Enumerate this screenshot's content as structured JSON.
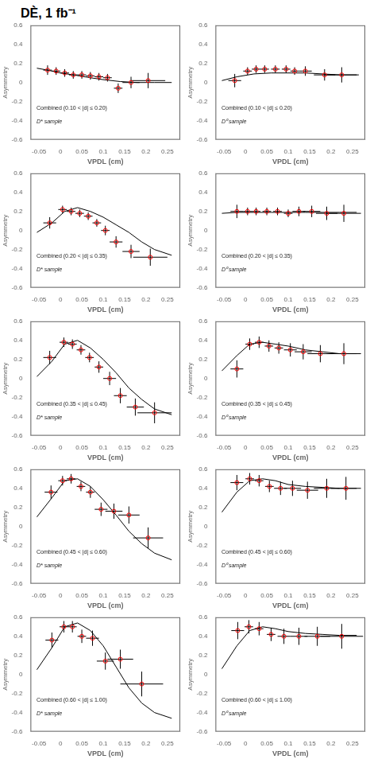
{
  "chart_data": {
    "type": "scatter",
    "title": "DÈ, 1 fb⁻¹",
    "xlabel": "VPDL (cm)",
    "ylabel": "Asymmetry",
    "xlim": [
      -0.07,
      0.28
    ],
    "ylim": [
      -0.6,
      0.6
    ],
    "xticks": [
      -0.05,
      0,
      0.05,
      0.1,
      0.15,
      0.2,
      0.25
    ],
    "yticks": [
      -0.6,
      -0.4,
      -0.2,
      0,
      0.2,
      0.4,
      0.6
    ],
    "grid": false,
    "panels": [
      {
        "annotations": [
          "Combined (0.10 < |d| ≤ 0.20)",
          "D* sample"
        ],
        "series": [
          {
            "type": "line",
            "color": "black",
            "line_style": "solid",
            "x": [
              -0.055,
              -0.03,
              0.0,
              0.03,
              0.07,
              0.1,
              0.14,
              0.18,
              0.22,
              0.26
            ],
            "values": [
              0.15,
              0.13,
              0.1,
              0.08,
              0.05,
              0.03,
              0.01,
              0.0,
              0.0,
              0.0
            ]
          },
          {
            "type": "scatter",
            "color": "red",
            "marker": "circle",
            "x": [
              -0.03,
              -0.01,
              0.01,
              0.03,
              0.05,
              0.07,
              0.09,
              0.11,
              0.135,
              0.165,
              0.205
            ],
            "values": [
              0.13,
              0.12,
              0.1,
              0.08,
              0.08,
              0.07,
              0.06,
              0.05,
              -0.06,
              0.0,
              0.02
            ],
            "xerr": [
              0.01,
              0.01,
              0.01,
              0.01,
              0.01,
              0.01,
              0.01,
              0.01,
              0.01,
              0.02,
              0.04
            ],
            "yerr": [
              0.05,
              0.04,
              0.04,
              0.04,
              0.04,
              0.04,
              0.04,
              0.04,
              0.05,
              0.06,
              0.08
            ]
          }
        ]
      },
      {
        "annotations": [
          "Combined (0.10 < |d| ≤ 0.20)",
          "D⁰ sample"
        ],
        "series": [
          {
            "type": "line",
            "color": "black",
            "line_style": "solid",
            "x": [
              -0.055,
              -0.02,
              0.02,
              0.06,
              0.1,
              0.14,
              0.18,
              0.22,
              0.26
            ],
            "values": [
              0.02,
              0.06,
              0.09,
              0.1,
              0.1,
              0.1,
              0.09,
              0.08,
              0.08
            ]
          },
          {
            "type": "scatter",
            "color": "red",
            "marker": "circle",
            "x": [
              -0.025,
              0.005,
              0.025,
              0.045,
              0.07,
              0.095,
              0.115,
              0.14,
              0.185,
              0.225
            ],
            "values": [
              0.02,
              0.12,
              0.14,
              0.14,
              0.14,
              0.14,
              0.12,
              0.12,
              0.08,
              0.08
            ],
            "xerr": [
              0.015,
              0.01,
              0.01,
              0.01,
              0.01,
              0.01,
              0.01,
              0.015,
              0.025,
              0.04
            ],
            "yerr": [
              0.07,
              0.04,
              0.04,
              0.04,
              0.04,
              0.04,
              0.04,
              0.05,
              0.06,
              0.08
            ]
          }
        ]
      },
      {
        "annotations": [
          "Combined (0.20 < |d| ≤ 0.35)",
          "D* sample"
        ],
        "series": [
          {
            "type": "line",
            "color": "black",
            "line_style": "solid",
            "x": [
              -0.055,
              -0.02,
              0.01,
              0.04,
              0.07,
              0.1,
              0.13,
              0.16,
              0.19,
              0.22,
              0.26
            ],
            "values": [
              -0.02,
              0.08,
              0.2,
              0.24,
              0.2,
              0.14,
              0.06,
              -0.02,
              -0.12,
              -0.2,
              -0.26
            ]
          },
          {
            "type": "scatter",
            "color": "red",
            "marker": "circle",
            "x": [
              -0.025,
              0.005,
              0.025,
              0.045,
              0.065,
              0.085,
              0.105,
              0.13,
              0.165,
              0.21
            ],
            "values": [
              0.08,
              0.22,
              0.2,
              0.18,
              0.15,
              0.08,
              0.0,
              -0.12,
              -0.22,
              -0.28
            ],
            "xerr": [
              0.015,
              0.01,
              0.01,
              0.01,
              0.01,
              0.01,
              0.01,
              0.015,
              0.02,
              0.04
            ],
            "yerr": [
              0.06,
              0.04,
              0.04,
              0.04,
              0.04,
              0.04,
              0.05,
              0.06,
              0.07,
              0.09
            ]
          }
        ]
      },
      {
        "annotations": [
          "Combined (0.20 < |d| ≤ 0.35)",
          "D⁰ sample"
        ],
        "series": [
          {
            "type": "line",
            "color": "black",
            "line_style": "solid",
            "x": [
              -0.055,
              -0.02,
              0.02,
              0.06,
              0.1,
              0.14,
              0.18,
              0.22,
              0.26
            ],
            "values": [
              0.18,
              0.19,
              0.19,
              0.19,
              0.19,
              0.19,
              0.19,
              0.19,
              0.19
            ]
          },
          {
            "type": "scatter",
            "color": "red",
            "marker": "circle",
            "x": [
              -0.02,
              0.005,
              0.025,
              0.05,
              0.075,
              0.1,
              0.125,
              0.155,
              0.19,
              0.23
            ],
            "values": [
              0.2,
              0.2,
              0.2,
              0.2,
              0.2,
              0.18,
              0.2,
              0.2,
              0.18,
              0.18
            ],
            "xerr": [
              0.015,
              0.01,
              0.01,
              0.01,
              0.01,
              0.01,
              0.015,
              0.02,
              0.025,
              0.04
            ],
            "yerr": [
              0.07,
              0.04,
              0.04,
              0.04,
              0.04,
              0.04,
              0.05,
              0.06,
              0.07,
              0.09
            ]
          }
        ]
      },
      {
        "annotations": [
          "Combined (0.35 < |d| ≤ 0.45)",
          "D* sample"
        ],
        "series": [
          {
            "type": "line",
            "color": "black",
            "line_style": "solid",
            "x": [
              -0.055,
              -0.02,
              0.01,
              0.04,
              0.07,
              0.1,
              0.13,
              0.16,
              0.19,
              0.22,
              0.26
            ],
            "values": [
              0.02,
              0.18,
              0.36,
              0.4,
              0.32,
              0.2,
              0.06,
              -0.1,
              -0.22,
              -0.32,
              -0.38
            ]
          },
          {
            "type": "scatter",
            "color": "red",
            "marker": "circle",
            "x": [
              -0.025,
              0.008,
              0.028,
              0.048,
              0.068,
              0.09,
              0.115,
              0.14,
              0.175,
              0.22
            ],
            "values": [
              0.22,
              0.38,
              0.36,
              0.3,
              0.22,
              0.12,
              0.0,
              -0.18,
              -0.3,
              -0.36
            ],
            "xerr": [
              0.015,
              0.01,
              0.01,
              0.01,
              0.01,
              0.01,
              0.015,
              0.015,
              0.02,
              0.04
            ],
            "yerr": [
              0.07,
              0.05,
              0.05,
              0.05,
              0.05,
              0.06,
              0.07,
              0.08,
              0.09,
              0.11
            ]
          }
        ]
      },
      {
        "annotations": [
          "Combined (0.35 < |d| ≤ 0.45)",
          "D⁰ sample"
        ],
        "series": [
          {
            "type": "line",
            "color": "black",
            "line_style": "solid",
            "x": [
              -0.055,
              -0.02,
              0.01,
              0.04,
              0.07,
              0.1,
              0.14,
              0.18,
              0.22,
              0.26
            ],
            "values": [
              0.08,
              0.24,
              0.36,
              0.38,
              0.36,
              0.34,
              0.3,
              0.28,
              0.26,
              0.26
            ]
          },
          {
            "type": "scatter",
            "color": "red",
            "marker": "circle",
            "x": [
              -0.02,
              0.01,
              0.032,
              0.055,
              0.078,
              0.105,
              0.135,
              0.175,
              0.23
            ],
            "values": [
              0.1,
              0.36,
              0.38,
              0.34,
              0.32,
              0.3,
              0.28,
              0.26,
              0.26
            ],
            "xerr": [
              0.015,
              0.01,
              0.01,
              0.01,
              0.01,
              0.015,
              0.02,
              0.03,
              0.04
            ],
            "yerr": [
              0.09,
              0.06,
              0.06,
              0.06,
              0.06,
              0.07,
              0.08,
              0.09,
              0.11
            ]
          }
        ]
      },
      {
        "annotations": [
          "Combined (0.45 < |d| ≤ 0.60)",
          "D* sample"
        ],
        "series": [
          {
            "type": "line",
            "color": "black",
            "line_style": "solid",
            "x": [
              -0.055,
              -0.02,
              0.01,
              0.04,
              0.07,
              0.1,
              0.13,
              0.16,
              0.19,
              0.22,
              0.26
            ],
            "values": [
              0.1,
              0.3,
              0.48,
              0.5,
              0.42,
              0.28,
              0.12,
              -0.05,
              -0.18,
              -0.28,
              -0.35
            ]
          },
          {
            "type": "scatter",
            "color": "red",
            "marker": "circle",
            "x": [
              -0.022,
              0.005,
              0.025,
              0.048,
              0.07,
              0.095,
              0.125,
              0.16,
              0.205
            ],
            "values": [
              0.36,
              0.48,
              0.5,
              0.42,
              0.36,
              0.18,
              0.16,
              0.12,
              -0.12
            ],
            "xerr": [
              0.015,
              0.01,
              0.01,
              0.01,
              0.01,
              0.015,
              0.02,
              0.025,
              0.035
            ],
            "yerr": [
              0.07,
              0.05,
              0.05,
              0.05,
              0.06,
              0.07,
              0.08,
              0.09,
              0.11
            ]
          }
        ]
      },
      {
        "annotations": [
          "Combined (0.45 < |d| ≤ 0.60)",
          "D⁰ sample"
        ],
        "series": [
          {
            "type": "line",
            "color": "black",
            "line_style": "solid",
            "x": [
              -0.055,
              -0.02,
              0.01,
              0.04,
              0.07,
              0.1,
              0.14,
              0.18,
              0.22,
              0.26
            ],
            "values": [
              0.15,
              0.36,
              0.48,
              0.5,
              0.48,
              0.44,
              0.42,
              0.41,
              0.4,
              0.4
            ]
          },
          {
            "type": "scatter",
            "color": "red",
            "marker": "circle",
            "x": [
              -0.02,
              0.01,
              0.032,
              0.056,
              0.082,
              0.11,
              0.145,
              0.19,
              0.235
            ],
            "values": [
              0.46,
              0.5,
              0.48,
              0.42,
              0.4,
              0.4,
              0.38,
              0.4,
              0.4
            ],
            "xerr": [
              0.015,
              0.01,
              0.01,
              0.01,
              0.015,
              0.02,
              0.025,
              0.03,
              0.035
            ],
            "yerr": [
              0.08,
              0.06,
              0.06,
              0.06,
              0.07,
              0.08,
              0.09,
              0.1,
              0.12
            ]
          }
        ]
      },
      {
        "annotations": [
          "Combined (0.60 < |d| ≤ 1.00)",
          "D* sample"
        ],
        "series": [
          {
            "type": "line",
            "color": "black",
            "line_style": "solid",
            "x": [
              -0.055,
              -0.02,
              0.01,
              0.04,
              0.07,
              0.1,
              0.13,
              0.16,
              0.19,
              0.22,
              0.26
            ],
            "values": [
              0.05,
              0.28,
              0.5,
              0.54,
              0.46,
              0.3,
              0.08,
              -0.14,
              -0.3,
              -0.4,
              -0.46
            ]
          },
          {
            "type": "scatter",
            "color": "red",
            "marker": "circle",
            "x": [
              -0.02,
              0.008,
              0.028,
              0.05,
              0.075,
              0.105,
              0.14,
              0.19
            ],
            "values": [
              0.36,
              0.5,
              0.5,
              0.4,
              0.38,
              0.14,
              0.16,
              -0.1
            ],
            "xerr": [
              0.015,
              0.01,
              0.01,
              0.01,
              0.015,
              0.02,
              0.03,
              0.05
            ],
            "yerr": [
              0.08,
              0.06,
              0.06,
              0.07,
              0.08,
              0.09,
              0.1,
              0.13
            ]
          }
        ]
      },
      {
        "annotations": [
          "Combined (0.60 < |d| ≤ 1.00)",
          "D⁰ sample"
        ],
        "series": [
          {
            "type": "line",
            "color": "black",
            "line_style": "solid",
            "x": [
              -0.055,
              -0.02,
              0.01,
              0.04,
              0.07,
              0.1,
              0.14,
              0.18,
              0.22,
              0.26
            ],
            "values": [
              0.06,
              0.3,
              0.46,
              0.5,
              0.48,
              0.45,
              0.43,
              0.42,
              0.41,
              0.41
            ]
          },
          {
            "type": "scatter",
            "color": "red",
            "marker": "circle",
            "x": [
              -0.018,
              0.008,
              0.032,
              0.06,
              0.09,
              0.125,
              0.168,
              0.225
            ],
            "values": [
              0.46,
              0.5,
              0.48,
              0.42,
              0.4,
              0.4,
              0.4,
              0.4
            ],
            "xerr": [
              0.015,
              0.01,
              0.01,
              0.01,
              0.015,
              0.02,
              0.03,
              0.05
            ],
            "yerr": [
              0.09,
              0.07,
              0.07,
              0.07,
              0.08,
              0.09,
              0.1,
              0.13
            ]
          }
        ]
      }
    ]
  }
}
